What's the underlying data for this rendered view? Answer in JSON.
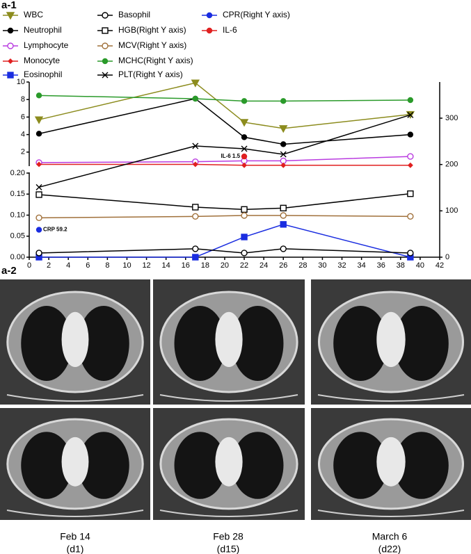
{
  "panel_a1": "a-1",
  "chart_data": {
    "type": "line",
    "x": [
      1,
      17,
      22,
      26,
      39
    ],
    "xlim": [
      0,
      42
    ],
    "xticks": [
      0,
      2,
      4,
      6,
      8,
      10,
      12,
      14,
      16,
      18,
      20,
      22,
      24,
      26,
      28,
      30,
      32,
      34,
      36,
      38,
      40,
      42
    ],
    "ylim": [
      0,
      0.2
    ],
    "yticks": [
      {
        "value": 0,
        "label": "0.00"
      },
      {
        "value": 0.05,
        "label": "0.05"
      },
      {
        "value": 0.1,
        "label": "0.10"
      },
      {
        "value": 0.15,
        "label": "0.15"
      },
      {
        "value": 0.2,
        "label": "0.20"
      }
    ],
    "ylim_upper": [
      0,
      10
    ],
    "yticks_upper": [
      2,
      4,
      6,
      8,
      10
    ],
    "y2lim": [
      0,
      378
    ],
    "y2ticks": [
      0,
      100,
      200,
      300
    ],
    "series": [
      {
        "name": "WBC",
        "color": "#8c8c1e",
        "marker": "triangle-down",
        "axis": "y_upper",
        "values": [
          5.7,
          9.9,
          5.4,
          4.7,
          6.3
        ]
      },
      {
        "name": "Neutrophil",
        "color": "#000000",
        "marker": "circle",
        "axis": "y_upper",
        "values": [
          4.1,
          8.1,
          3.7,
          2.9,
          4.0
        ]
      },
      {
        "name": "Lymphocyte",
        "color": "#b93be0",
        "marker": "circle-open",
        "axis": "y_upper",
        "values": [
          0.8,
          0.9,
          1.0,
          1.0,
          1.5
        ]
      },
      {
        "name": "Monocyte",
        "color": "#e02020",
        "marker": "diamond",
        "axis": "y_upper",
        "values": [
          0.6,
          0.6,
          0.5,
          0.5,
          0.5
        ]
      },
      {
        "name": "Eosinophil",
        "color": "#1a2de0",
        "marker": "square",
        "axis": "y",
        "values": [
          0,
          0,
          0.048,
          0.078,
          0
        ]
      },
      {
        "name": "Basophil",
        "color": "#000000",
        "marker": "circle-open",
        "axis": "y",
        "values": [
          0.01,
          0.02,
          0.01,
          0.02,
          0.01
        ]
      },
      {
        "name": "HGB(Right Y axis)",
        "color": "#000000",
        "marker": "square-open",
        "axis": "y2",
        "values": [
          135,
          108,
          103,
          106,
          137
        ]
      },
      {
        "name": "MCV(Right Y axis)",
        "color": "#a0703a",
        "marker": "circle-open",
        "axis": "y2",
        "values": [
          85,
          88,
          90,
          90,
          88
        ]
      },
      {
        "name": "MCHC(Right Y axis)",
        "color": "#2a9a2a",
        "marker": "circle",
        "axis": "y2",
        "values": [
          349,
          342,
          337,
          337,
          339
        ]
      },
      {
        "name": "PLT(Right Y axis)",
        "color": "#000000",
        "marker": "cross",
        "axis": "y2",
        "values": [
          151,
          240,
          234,
          222,
          307
        ]
      },
      {
        "name": "CPR(Right Y axis)",
        "color": "#1a2de0",
        "marker": "circle",
        "axis": "y2",
        "x": [
          1
        ],
        "values": [
          59.2
        ],
        "value_labels": [
          "CRP 59.2"
        ]
      },
      {
        "name": "IL-6",
        "color": "#e02020",
        "marker": "circle",
        "axis": "y_upper",
        "x": [
          22
        ],
        "values": [
          1.5
        ],
        "value_labels": [
          "IL-6 1.5"
        ]
      }
    ]
  },
  "ct_panel": {
    "label": "a-2",
    "captions": [
      {
        "date": "Feb 14",
        "day": "(d1)"
      },
      {
        "date": "Feb 28",
        "day": "(d15)"
      },
      {
        "date": "March 6",
        "day": "(d22)"
      }
    ]
  }
}
